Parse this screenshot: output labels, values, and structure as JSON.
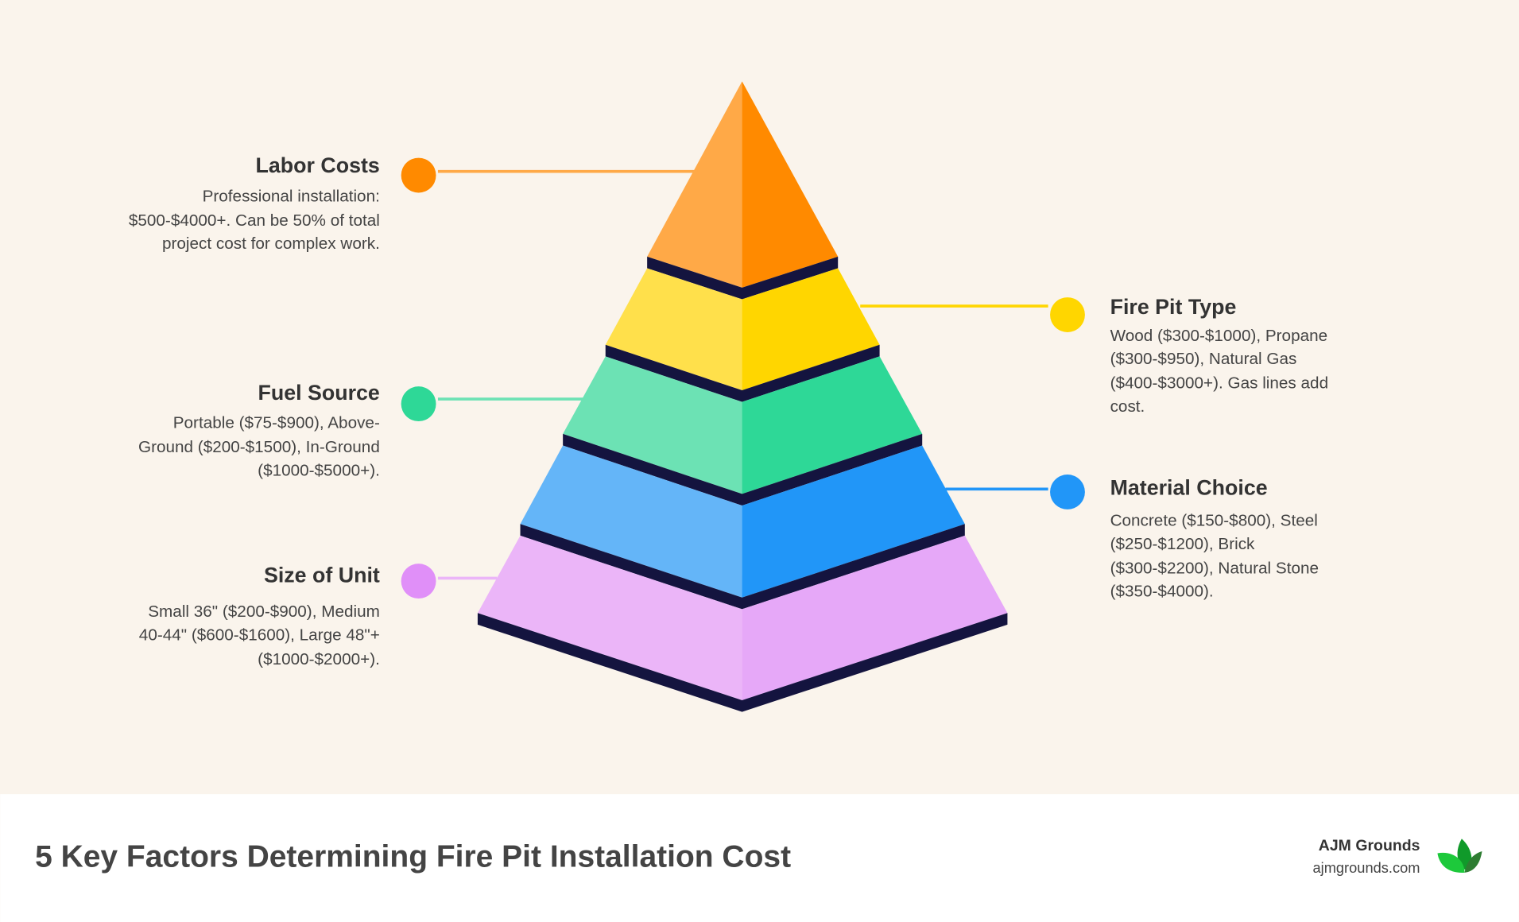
{
  "title": "5 Key Factors Determining Fire Pit Installation Cost",
  "brand": {
    "name": "AJM Grounds",
    "url": "ajmgrounds.com",
    "logo_icon": "green-leaves-icon",
    "logo_colors": [
      "#1DC93B",
      "#109A2A",
      "#2E7D32"
    ]
  },
  "band_color": "#14143F",
  "factors": [
    {
      "heading": "Labor Costs",
      "lines": [
        "Professional installation:",
        "$500-$4000+. Can be 50% of total",
        "project cost for complex work."
      ],
      "color": "#FF8A00",
      "side": "left"
    },
    {
      "heading": "Fire Pit Type",
      "lines": [
        "Wood ($300-$1000), Propane",
        "($300-$950), Natural Gas",
        "($400-$3000+). Gas lines add",
        "cost."
      ],
      "color": "#FFD600",
      "side": "right"
    },
    {
      "heading": "Fuel Source",
      "lines": [
        "Portable ($75-$900), Above-",
        "Ground ($200-$1500), In-Ground",
        "($1000-$5000+)."
      ],
      "color": "#2ED897",
      "side": "left"
    },
    {
      "heading": "Material Choice",
      "lines": [
        "Concrete ($150-$800), Steel",
        "($250-$1200), Brick",
        "($300-$2200), Natural Stone",
        "($350-$4000)."
      ],
      "color": "#2196F8",
      "side": "right"
    },
    {
      "heading": "Size of Unit",
      "lines": [
        "Small 36\" ($200-$900), Medium",
        "40-44\" ($600-$1600), Large 48\"+",
        "($1000-$2000+)."
      ],
      "color": "#E08FF8",
      "side": "left"
    }
  ]
}
